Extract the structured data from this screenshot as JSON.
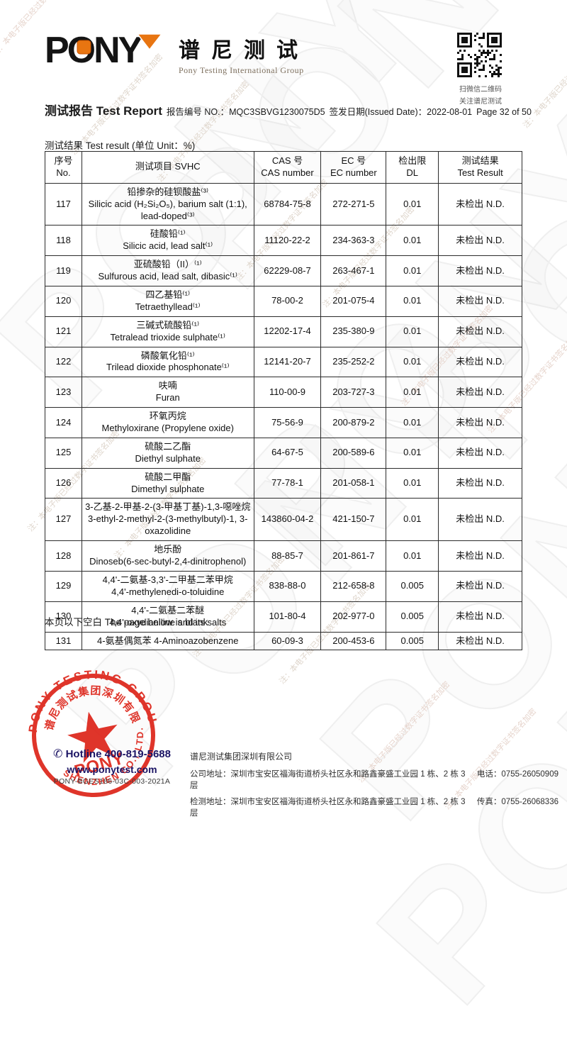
{
  "colors": {
    "accent_orange": "#e87511",
    "stamp_red": "#dd2419",
    "hotline_navy": "#1b1464",
    "text": "#1a1a1a"
  },
  "header": {
    "logo_text": "PONY",
    "logo_cn": "谱尼测试",
    "logo_sub": "Pony Testing International Group",
    "qr_caption_line1": "扫微信二维码",
    "qr_caption_line2": "关注谱尼测试"
  },
  "title": {
    "report_title": "测试报告 Test Report",
    "report_no_label": "报告编号 NO.：",
    "report_no": "MQC3SBVG1230075D5",
    "issue_label": "签发日期(Issued Date)：",
    "issue_date": "2022-08-01",
    "page_info": "Page 32 of 50"
  },
  "section": {
    "title": "测试结果  Test result (单位 Unit：%)"
  },
  "table": {
    "headers": {
      "no_zh": "序号",
      "no_en": "No.",
      "name": "测试项目  SVHC",
      "cas_zh": "CAS 号",
      "cas_en": "CAS number",
      "ec_zh": "EC 号",
      "ec_en": "EC number",
      "dl_zh": "检出限",
      "dl_en": "DL",
      "res_zh": "测试结果",
      "res_en": "Test Result"
    },
    "rows": [
      {
        "no": "117",
        "zh": "铅掺杂的硅钡酸盐⁽³⁾",
        "en": "Silicic acid (H₂Si₂O₅), barium salt (1:1), lead-doped⁽³⁾",
        "cas": "68784-75-8",
        "ec": "272-271-5",
        "dl": "0.01",
        "res": "未检出 N.D."
      },
      {
        "no": "118",
        "zh": "硅酸铅⁽¹⁾",
        "en": "Silicic acid, lead salt⁽¹⁾",
        "cas": "11120-22-2",
        "ec": "234-363-3",
        "dl": "0.01",
        "res": "未检出 N.D."
      },
      {
        "no": "119",
        "zh": "亚硫酸铅（II）⁽¹⁾",
        "en": "Sulfurous acid, lead salt, dibasic⁽¹⁾",
        "cas": "62229-08-7",
        "ec": "263-467-1",
        "dl": "0.01",
        "res": "未检出 N.D."
      },
      {
        "no": "120",
        "zh": "四乙基铅⁽¹⁾",
        "en": "Tetraethyllead⁽¹⁾",
        "cas": "78-00-2",
        "ec": "201-075-4",
        "dl": "0.01",
        "res": "未检出 N.D."
      },
      {
        "no": "121",
        "zh": "三碱式硫酸铅⁽¹⁾",
        "en": "Tetralead trioxide sulphate⁽¹⁾",
        "cas": "12202-17-4",
        "ec": "235-380-9",
        "dl": "0.01",
        "res": "未检出 N.D."
      },
      {
        "no": "122",
        "zh": "磷酸氧化铅⁽¹⁾",
        "en": "Trilead dioxide phosphonate⁽¹⁾",
        "cas": "12141-20-7",
        "ec": "235-252-2",
        "dl": "0.01",
        "res": "未检出 N.D."
      },
      {
        "no": "123",
        "zh": "呋喃",
        "en": "Furan",
        "cas": "110-00-9",
        "ec": "203-727-3",
        "dl": "0.01",
        "res": "未检出 N.D."
      },
      {
        "no": "124",
        "zh": "环氧丙烷",
        "en": "Methyloxirane (Propylene oxide)",
        "cas": "75-56-9",
        "ec": "200-879-2",
        "dl": "0.01",
        "res": "未检出 N.D."
      },
      {
        "no": "125",
        "zh": "硫酸二乙酯",
        "en": "Diethyl sulphate",
        "cas": "64-67-5",
        "ec": "200-589-6",
        "dl": "0.01",
        "res": "未检出 N.D."
      },
      {
        "no": "126",
        "zh": "硫酸二甲酯",
        "en": "Dimethyl sulphate",
        "cas": "77-78-1",
        "ec": "201-058-1",
        "dl": "0.01",
        "res": "未检出 N.D."
      },
      {
        "no": "127",
        "zh": "3-乙基-2-甲基-2-(3-甲基丁基)-1,3-噁唑烷",
        "en": "3-ethyl-2-methyl-2-(3-methylbutyl)-1, 3-oxazolidine",
        "cas": "143860-04-2",
        "ec": "421-150-7",
        "dl": "0.01",
        "res": "未检出 N.D."
      },
      {
        "no": "128",
        "zh": "地乐酚",
        "en": "Dinoseb(6-sec-butyl-2,4-dinitrophenol)",
        "cas": "88-85-7",
        "ec": "201-861-7",
        "dl": "0.01",
        "res": "未检出 N.D."
      },
      {
        "no": "129",
        "zh": "4,4'-二氨基-3,3'-二甲基二苯甲烷",
        "en": "4,4'-methylenedi-o-toluidine",
        "cas": "838-88-0",
        "ec": "212-658-8",
        "dl": "0.005",
        "res": "未检出 N.D."
      },
      {
        "no": "130",
        "zh": "4,4'-二氨基二苯醚",
        "en": "4,4'-oxydianiline and its salts",
        "cas": "101-80-4",
        "ec": "202-977-0",
        "dl": "0.005",
        "res": "未检出 N.D."
      },
      {
        "no": "131",
        "zh": "4-氨基偶氮苯 4-Aminoazobenzene",
        "en": "",
        "cas": "60-09-3",
        "ec": "200-453-6",
        "dl": "0.005",
        "res": "未检出 N.D."
      }
    ]
  },
  "after_table_note": "本页以下空白 The page below is blank",
  "footer": {
    "phone_icon": "✆",
    "hotline": "Hotline 400-819-5688",
    "website": "www.ponytest.com",
    "doc_code": "PONY-BGES186-03C-003-2021A",
    "company": "谱尼测试集团深圳有限公司",
    "addr1": "公司地址：深圳市宝安区福海街道桥头社区永和路鑫豪盛工业园 1 栋、2 栋 3 层",
    "tel": "电话：0755-26050909",
    "addr2": "检测地址：深圳市宝安区福海街道桥头社区永和路鑫豪盛工业园 1 栋、2 栋 3 层",
    "fax": "传真：0755-26068336"
  },
  "stamp": {
    "outer_top": "PONY TESTING GROUP",
    "outer_bottom": "SHENZHEN CO., LTD.",
    "inner_cn": "谱尼测试集团深圳有限公司",
    "center": "PONY"
  },
  "watermark": {
    "large": "PONY",
    "note": "注：本电子版已经过数字证书签名加密"
  }
}
